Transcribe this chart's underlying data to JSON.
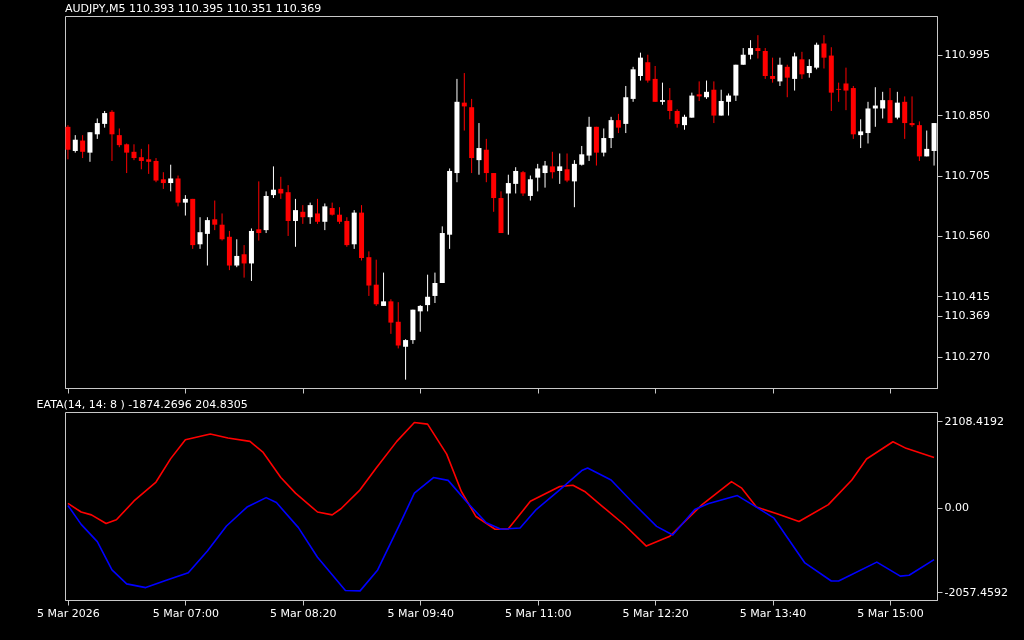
{
  "chart_data": [
    {
      "type": "candlestick",
      "title": "AUDJPY,M5  110.393 110.395 110.351 110.369",
      "x": [
        "2026-03-05T05:40",
        "2026-03-05T05:45",
        "2026-03-05T05:50",
        "2026-03-05T05:55",
        "2026-03-05T06:00",
        "2026-03-05T06:05",
        "2026-03-05T06:10",
        "2026-03-05T06:15",
        "2026-03-05T06:20",
        "2026-03-05T06:25",
        "2026-03-05T06:30",
        "2026-03-05T06:35",
        "2026-03-05T06:40",
        "2026-03-05T06:45",
        "2026-03-05T06:50",
        "2026-03-05T06:55",
        "2026-03-05T07:00",
        "2026-03-05T07:05",
        "2026-03-05T07:10",
        "2026-03-05T07:15",
        "2026-03-05T07:20",
        "2026-03-05T07:25",
        "2026-03-05T07:30",
        "2026-03-05T07:35",
        "2026-03-05T07:40",
        "2026-03-05T07:45",
        "2026-03-05T07:50",
        "2026-03-05T07:55",
        "2026-03-05T08:00",
        "2026-03-05T08:05",
        "2026-03-05T08:10",
        "2026-03-05T08:15",
        "2026-03-05T08:20",
        "2026-03-05T08:25",
        "2026-03-05T08:30",
        "2026-03-05T08:35",
        "2026-03-05T08:40",
        "2026-03-05T08:45",
        "2026-03-05T08:50",
        "2026-03-05T08:55",
        "2026-03-05T09:00",
        "2026-03-05T09:05",
        "2026-03-05T09:10",
        "2026-03-05T09:15",
        "2026-03-05T09:20",
        "2026-03-05T09:25",
        "2026-03-05T09:30",
        "2026-03-05T09:35",
        "2026-03-05T09:40",
        "2026-03-05T09:45",
        "2026-03-05T09:50",
        "2026-03-05T09:55",
        "2026-03-05T10:00",
        "2026-03-05T10:05",
        "2026-03-05T10:10",
        "2026-03-05T10:15",
        "2026-03-05T10:20",
        "2026-03-05T10:25",
        "2026-03-05T10:30",
        "2026-03-05T10:35",
        "2026-03-05T10:40",
        "2026-03-05T10:45",
        "2026-03-05T10:50",
        "2026-03-05T10:55",
        "2026-03-05T11:00",
        "2026-03-05T11:05",
        "2026-03-05T11:10",
        "2026-03-05T11:15",
        "2026-03-05T11:20",
        "2026-03-05T11:25",
        "2026-03-05T11:30",
        "2026-03-05T11:35",
        "2026-03-05T11:40",
        "2026-03-05T11:45",
        "2026-03-05T11:50",
        "2026-03-05T11:55",
        "2026-03-05T12:00",
        "2026-03-05T12:05",
        "2026-03-05T12:10",
        "2026-03-05T12:15",
        "2026-03-05T12:20",
        "2026-03-05T12:25",
        "2026-03-05T12:30",
        "2026-03-05T12:35",
        "2026-03-05T12:40",
        "2026-03-05T12:45",
        "2026-03-05T12:50",
        "2026-03-05T12:55",
        "2026-03-05T13:00",
        "2026-03-05T13:05",
        "2026-03-05T13:10",
        "2026-03-05T13:15",
        "2026-03-05T13:20",
        "2026-03-05T13:25",
        "2026-03-05T13:30",
        "2026-03-05T13:35",
        "2026-03-05T13:40",
        "2026-03-05T13:45",
        "2026-03-05T13:50",
        "2026-03-05T13:55",
        "2026-03-05T14:00",
        "2026-03-05T14:05",
        "2026-03-05T14:10",
        "2026-03-05T14:15",
        "2026-03-05T14:20",
        "2026-03-05T14:25",
        "2026-03-05T14:30",
        "2026-03-05T14:35",
        "2026-03-05T14:40",
        "2026-03-05T14:45",
        "2026-03-05T14:50",
        "2026-03-05T14:55",
        "2026-03-05T15:00",
        "2026-03-05T15:05",
        "2026-03-05T15:10",
        "2026-03-05T15:15",
        "2026-03-05T15:20",
        "2026-03-05T15:25",
        "2026-03-05T15:30"
      ],
      "ohlc": [
        [
          110.822,
          110.826,
          110.744,
          110.767
        ],
        [
          110.764,
          110.802,
          110.76,
          110.791
        ],
        [
          110.789,
          110.802,
          110.747,
          110.762
        ],
        [
          110.76,
          110.809,
          110.738,
          110.809
        ],
        [
          110.804,
          110.842,
          110.793,
          110.831
        ],
        [
          110.829,
          110.86,
          110.82,
          110.855
        ],
        [
          110.858,
          110.862,
          110.74,
          110.804
        ],
        [
          110.802,
          110.818,
          110.773,
          110.778
        ],
        [
          110.78,
          110.782,
          110.711,
          110.76
        ],
        [
          110.762,
          110.78,
          110.742,
          110.747
        ],
        [
          110.749,
          110.769,
          110.72,
          110.74
        ],
        [
          110.744,
          110.78,
          110.709,
          110.738
        ],
        [
          110.74,
          110.747,
          110.689,
          110.693
        ],
        [
          110.696,
          110.713,
          110.673,
          110.687
        ],
        [
          110.687,
          110.731,
          110.667,
          110.698
        ],
        [
          110.698,
          110.705,
          110.631,
          110.64
        ],
        [
          110.64,
          110.658,
          110.609,
          110.649
        ],
        [
          110.649,
          110.649,
          110.529,
          110.538
        ],
        [
          110.54,
          110.605,
          110.529,
          110.569
        ],
        [
          110.565,
          110.605,
          110.489,
          110.598
        ],
        [
          110.6,
          110.645,
          110.574,
          110.587
        ],
        [
          110.587,
          110.614,
          110.549,
          110.552
        ],
        [
          110.558,
          110.572,
          110.478,
          110.489
        ],
        [
          110.489,
          110.552,
          110.485,
          110.512
        ],
        [
          110.516,
          110.538,
          110.46,
          110.494
        ],
        [
          110.494,
          110.578,
          110.452,
          110.572
        ],
        [
          110.576,
          110.691,
          110.549,
          110.567
        ],
        [
          110.574,
          110.667,
          110.567,
          110.656
        ],
        [
          110.658,
          110.727,
          110.651,
          110.671
        ],
        [
          110.673,
          110.702,
          110.649,
          110.662
        ],
        [
          110.665,
          110.682,
          110.56,
          110.596
        ],
        [
          110.596,
          110.649,
          110.534,
          110.622
        ],
        [
          110.618,
          110.634,
          110.589,
          110.605
        ],
        [
          110.605,
          110.64,
          110.589,
          110.634
        ],
        [
          110.614,
          110.649,
          110.589,
          110.594
        ],
        [
          110.594,
          110.638,
          110.574,
          110.631
        ],
        [
          110.627,
          110.64,
          110.609,
          110.611
        ],
        [
          110.611,
          110.629,
          110.589,
          110.594
        ],
        [
          110.596,
          110.605,
          110.534,
          110.538
        ],
        [
          110.54,
          110.622,
          110.529,
          110.616
        ],
        [
          110.616,
          110.634,
          110.501,
          110.507
        ],
        [
          110.509,
          110.523,
          110.416,
          110.441
        ],
        [
          110.443,
          110.503,
          110.392,
          110.396
        ],
        [
          110.392,
          110.472,
          110.392,
          110.403
        ],
        [
          110.403,
          110.408,
          110.325,
          110.352
        ],
        [
          110.354,
          110.401,
          110.29,
          110.297
        ],
        [
          110.294,
          110.312,
          110.215,
          110.31
        ],
        [
          110.31,
          110.383,
          110.301,
          110.383
        ],
        [
          110.379,
          110.394,
          110.33,
          110.392
        ],
        [
          110.394,
          110.467,
          110.379,
          110.414
        ],
        [
          110.416,
          110.472,
          110.399,
          110.447
        ],
        [
          110.447,
          110.583,
          110.447,
          110.567
        ],
        [
          110.563,
          110.722,
          110.529,
          110.716
        ],
        [
          110.711,
          110.937,
          110.689,
          110.882
        ],
        [
          110.88,
          110.951,
          110.813,
          110.871
        ],
        [
          110.869,
          110.889,
          110.711,
          110.747
        ],
        [
          110.742,
          110.831,
          110.707,
          110.771
        ],
        [
          110.767,
          110.793,
          110.689,
          110.711
        ],
        [
          110.711,
          110.711,
          110.618,
          110.651
        ],
        [
          110.651,
          110.667,
          110.567,
          110.567
        ],
        [
          110.662,
          110.707,
          110.563,
          110.687
        ],
        [
          110.685,
          110.725,
          110.662,
          110.716
        ],
        [
          110.713,
          110.716,
          110.656,
          110.662
        ],
        [
          110.656,
          110.705,
          110.645,
          110.696
        ],
        [
          110.7,
          110.733,
          110.667,
          110.722
        ],
        [
          110.711,
          110.74,
          110.676,
          110.729
        ],
        [
          110.727,
          110.762,
          110.698,
          110.713
        ],
        [
          110.716,
          110.758,
          110.685,
          110.727
        ],
        [
          110.72,
          110.758,
          110.689,
          110.693
        ],
        [
          110.691,
          110.742,
          110.629,
          110.733
        ],
        [
          110.731,
          110.776,
          110.729,
          110.756
        ],
        [
          110.753,
          110.846,
          110.74,
          110.822
        ],
        [
          110.822,
          110.822,
          110.729,
          110.76
        ],
        [
          110.76,
          110.818,
          110.751,
          110.795
        ],
        [
          110.795,
          110.846,
          110.771,
          110.838
        ],
        [
          110.838,
          110.853,
          110.807,
          110.82
        ],
        [
          110.829,
          110.92,
          110.807,
          110.893
        ],
        [
          110.889,
          110.966,
          110.882,
          110.96
        ],
        [
          110.944,
          111.0,
          110.933,
          110.988
        ],
        [
          110.977,
          110.995,
          110.928,
          110.933
        ],
        [
          110.937,
          110.968,
          110.882,
          110.882
        ],
        [
          110.882,
          110.928,
          110.875,
          110.886
        ],
        [
          110.886,
          110.915,
          110.84,
          110.86
        ],
        [
          110.86,
          110.864,
          110.82,
          110.829
        ],
        [
          110.826,
          110.851,
          110.815,
          110.846
        ],
        [
          110.844,
          110.904,
          110.844,
          110.897
        ],
        [
          110.9,
          110.931,
          110.884,
          110.895
        ],
        [
          110.893,
          110.933,
          110.889,
          110.906
        ],
        [
          110.911,
          110.931,
          110.831,
          110.849
        ],
        [
          110.849,
          110.911,
          110.849,
          110.884
        ],
        [
          110.882,
          110.902,
          110.849,
          110.897
        ],
        [
          110.897,
          110.971,
          110.884,
          110.971
        ],
        [
          110.971,
          111.011,
          110.971,
          110.995
        ],
        [
          110.995,
          111.03,
          110.984,
          111.011
        ],
        [
          111.011,
          111.042,
          110.986,
          111.004
        ],
        [
          111.004,
          111.011,
          110.937,
          110.944
        ],
        [
          110.944,
          110.988,
          110.928,
          110.937
        ],
        [
          110.931,
          110.988,
          110.92,
          110.971
        ],
        [
          110.966,
          110.971,
          110.893,
          110.94
        ],
        [
          110.937,
          111.0,
          110.909,
          110.991
        ],
        [
          110.984,
          111.002,
          110.937,
          110.948
        ],
        [
          110.951,
          110.984,
          110.94,
          110.968
        ],
        [
          110.964,
          111.024,
          110.96,
          111.019
        ],
        [
          111.022,
          111.042,
          110.962,
          110.988
        ],
        [
          110.993,
          111.013,
          110.86,
          110.904
        ],
        [
          110.913,
          110.928,
          110.882,
          110.911
        ],
        [
          110.926,
          110.964,
          110.862,
          110.909
        ],
        [
          110.915,
          110.92,
          110.793,
          110.804
        ],
        [
          110.802,
          110.84,
          110.771,
          110.811
        ],
        [
          110.807,
          110.882,
          110.782,
          110.866
        ],
        [
          110.866,
          110.917,
          110.822,
          110.873
        ],
        [
          110.866,
          110.906,
          110.842,
          110.886
        ],
        [
          110.886,
          110.915,
          110.831,
          110.831
        ],
        [
          110.844,
          110.906,
          110.84,
          110.88
        ],
        [
          110.882,
          110.895,
          110.793,
          110.831
        ],
        [
          110.831,
          110.895,
          110.822,
          110.826
        ],
        [
          110.826,
          110.835,
          110.74,
          110.751
        ],
        [
          110.751,
          110.813,
          110.751,
          110.769
        ],
        [
          110.764,
          110.831,
          110.729,
          110.831
        ]
      ],
      "colors": [
        "#ff0000",
        "#ffffff",
        "#ff0000",
        "#ffffff",
        "#ffffff",
        "#ffffff",
        "#ff0000",
        "#ff0000",
        "#ff0000",
        "#ff0000",
        "#ff0000",
        "#ff0000",
        "#ff0000",
        "#ff0000",
        "#ffffff",
        "#ff0000",
        "#ffffff",
        "#ff0000",
        "#ffffff",
        "#ffffff",
        "#ff0000",
        "#ff0000",
        "#ff0000",
        "#ffffff",
        "#ff0000",
        "#ffffff",
        "#ff0000",
        "#ffffff",
        "#ffffff",
        "#ff0000",
        "#ff0000",
        "#ffffff",
        "#ff0000",
        "#ffffff",
        "#ff0000",
        "#ffffff",
        "#ff0000",
        "#ff0000",
        "#ff0000",
        "#ffffff",
        "#ff0000",
        "#ff0000",
        "#ff0000",
        "#ffffff",
        "#ff0000",
        "#ff0000",
        "#ffffff",
        "#ffffff",
        "#ffffff",
        "#ffffff",
        "#ffffff",
        "#ffffff",
        "#ffffff",
        "#ffffff",
        "#ff0000",
        "#ff0000",
        "#ffffff",
        "#ff0000",
        "#ff0000",
        "#ff0000",
        "#ffffff",
        "#ffffff",
        "#ff0000",
        "#ffffff",
        "#ffffff",
        "#ffffff",
        "#ff0000",
        "#ffffff",
        "#ff0000",
        "#ffffff",
        "#ffffff",
        "#ffffff",
        "#ff0000",
        "#ffffff",
        "#ffffff",
        "#ff0000",
        "#ffffff",
        "#ffffff",
        "#ffffff",
        "#ff0000",
        "#ff0000",
        "#ffffff",
        "#ff0000",
        "#ff0000",
        "#ffffff",
        "#ffffff",
        "#ff0000",
        "#ffffff",
        "#ff0000",
        "#ffffff",
        "#ffffff",
        "#ffffff",
        "#ffffff",
        "#ffffff",
        "#ff0000",
        "#ff0000",
        "#ff0000",
        "#ffffff",
        "#ff0000",
        "#ffffff",
        "#ff0000",
        "#ffffff",
        "#ffffff",
        "#ff0000",
        "#ff0000",
        "#ff0000",
        "#ff0000",
        "#ff0000",
        "#ffffff",
        "#ffffff",
        "#ffffff",
        "#ffffff",
        "#ff0000",
        "#ffffff",
        "#ff0000",
        "#ff0000",
        "#ff0000",
        "#ffffff",
        "#ffffff"
      ],
      "xlim": [
        "2026-03-05T05:38",
        "2026-03-05T15:32"
      ],
      "xticks": [
        {
          "value": "2026-03-05T05:40",
          "label": null
        },
        {
          "value": "2026-03-05T07:00",
          "label": null
        },
        {
          "value": "2026-03-05T08:20",
          "label": null
        },
        {
          "value": "2026-03-05T09:40",
          "label": null
        },
        {
          "value": "2026-03-05T11:00",
          "label": null
        },
        {
          "value": "2026-03-05T12:20",
          "label": null
        },
        {
          "value": "2026-03-05T13:40",
          "label": null
        },
        {
          "value": "2026-03-05T15:00",
          "label": null
        }
      ],
      "ylim": [
        110.195,
        111.088
      ],
      "yticks": [
        {
          "value": 110.27,
          "label": "110.270"
        },
        110.369,
        110.415,
        {
          "value": 110.56,
          "label": "110.560"
        },
        110.705,
        {
          "value": 110.85,
          "label": "110.850"
        },
        110.995
      ],
      "tick_labels": "y"
    },
    {
      "type": "line",
      "title": "EATA(14, 14: 8 ) -1874.2696 204.8305",
      "series": [
        {
          "color": "#ff0000",
          "x": [
            "2026-03-05T05:40",
            "2026-03-05T05:49",
            "2026-03-05T05:56",
            "2026-03-05T06:06",
            "2026-03-05T06:13",
            "2026-03-05T06:25",
            "2026-03-05T06:40",
            "2026-03-05T06:50",
            "2026-03-05T07:00",
            "2026-03-05T07:17",
            "2026-03-05T07:29",
            "2026-03-05T07:44",
            "2026-03-05T07:53",
            "2026-03-05T08:05",
            "2026-03-05T08:15",
            "2026-03-05T08:30",
            "2026-03-05T08:40",
            "2026-03-05T08:46",
            "2026-03-05T08:59",
            "2026-03-05T09:10",
            "2026-03-05T09:24",
            "2026-03-05T09:36",
            "2026-03-05T09:45",
            "2026-03-05T09:58",
            "2026-03-05T10:08",
            "2026-03-05T10:18",
            "2026-03-05T10:31",
            "2026-03-05T10:40",
            "2026-03-05T10:55",
            "2026-03-05T11:15",
            "2026-03-05T11:24",
            "2026-03-05T11:32",
            "2026-03-05T11:44",
            "2026-03-05T11:59",
            "2026-03-05T12:14",
            "2026-03-05T12:30",
            "2026-03-05T12:52",
            "2026-03-05T13:12",
            "2026-03-05T13:19",
            "2026-03-05T13:29",
            "2026-03-05T13:43",
            "2026-03-05T13:58",
            "2026-03-05T14:18",
            "2026-03-05T14:34",
            "2026-03-05T14:44",
            "2026-03-05T15:02",
            "2026-03-05T15:11",
            "2026-03-05T15:30"
          ],
          "values": [
            110,
            -100,
            -170,
            -380,
            -290,
            170,
            630,
            1200,
            1660,
            1800,
            1700,
            1620,
            1350,
            740,
            360,
            -100,
            -170,
            -20,
            440,
            970,
            1620,
            2080,
            2040,
            1310,
            400,
            -210,
            -520,
            -510,
            160,
            520,
            550,
            400,
            40,
            -410,
            -930,
            -690,
            80,
            640,
            480,
            20,
            -140,
            -330,
            80,
            680,
            1190,
            1610,
            1450,
            1230
          ]
        },
        {
          "color": "#0000ff",
          "x": [
            "2026-03-05T05:40",
            "2026-03-05T05:49",
            "2026-03-05T06:00",
            "2026-03-05T06:10",
            "2026-03-05T06:20",
            "2026-03-05T06:33",
            "2026-03-05T06:47",
            "2026-03-05T07:02",
            "2026-03-05T07:15",
            "2026-03-05T07:28",
            "2026-03-05T07:42",
            "2026-03-05T07:55",
            "2026-03-05T08:02",
            "2026-03-05T08:17",
            "2026-03-05T08:30",
            "2026-03-05T08:49",
            "2026-03-05T08:59",
            "2026-03-05T09:11",
            "2026-03-05T09:26",
            "2026-03-05T09:36",
            "2026-03-05T09:49",
            "2026-03-05T09:59",
            "2026-03-05T10:12",
            "2026-03-05T10:25",
            "2026-03-05T10:35",
            "2026-03-05T10:48",
            "2026-03-05T10:59",
            "2026-03-05T11:15",
            "2026-03-05T11:30",
            "2026-03-05T11:34",
            "2026-03-05T11:50",
            "2026-03-05T12:05",
            "2026-03-05T12:21",
            "2026-03-05T12:32",
            "2026-03-05T12:47",
            "2026-03-05T12:56",
            "2026-03-05T13:16",
            "2026-03-05T13:29",
            "2026-03-05T13:41",
            "2026-03-05T14:02",
            "2026-03-05T14:20",
            "2026-03-05T14:25",
            "2026-03-05T14:51",
            "2026-03-05T15:07",
            "2026-03-05T15:13",
            "2026-03-05T15:30"
          ],
          "values": [
            60,
            -400,
            -820,
            -1510,
            -1850,
            -1940,
            -1760,
            -1580,
            -1050,
            -440,
            20,
            250,
            130,
            -480,
            -1200,
            -2010,
            -2020,
            -1510,
            -400,
            360,
            740,
            670,
            130,
            -360,
            -520,
            -490,
            -40,
            440,
            910,
            970,
            680,
            120,
            -450,
            -660,
            -40,
            100,
            300,
            20,
            -250,
            -1340,
            -1780,
            -1780,
            -1320,
            -1660,
            -1640,
            -1260
          ]
        }
      ],
      "xlim": [
        "2026-03-05T05:38",
        "2026-03-05T15:32"
      ],
      "xticks": [
        {
          "value": "2026-03-05T05:40",
          "label": "5 Mar 2026"
        },
        {
          "value": "2026-03-05T07:00",
          "label": "5 Mar 07:00"
        },
        {
          "value": "2026-03-05T08:20",
          "label": "5 Mar 08:20"
        },
        {
          "value": "2026-03-05T09:40",
          "label": "5 Mar 09:40"
        },
        {
          "value": "2026-03-05T11:00",
          "label": "5 Mar 11:00"
        },
        {
          "value": "2026-03-05T12:20",
          "label": "5 Mar 12:20"
        },
        {
          "value": "2026-03-05T13:40",
          "label": "5 Mar 13:40"
        },
        {
          "value": "2026-03-05T15:00",
          "label": "5 Mar 15:00"
        }
      ],
      "ylim": [
        -2242,
        2335
      ],
      "yticks": [
        -2057.4592,
        {
          "value": 0,
          "label": "0.00"
        },
        2108.4192
      ]
    }
  ]
}
